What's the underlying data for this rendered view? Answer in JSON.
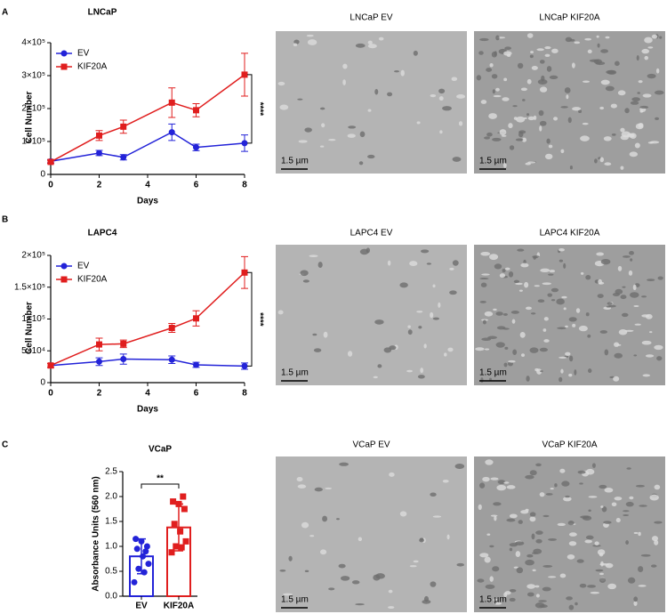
{
  "chart_data": [
    {
      "type": "line",
      "panel": "A",
      "title": "LNCaP",
      "xlabel": "Days",
      "ylabel": "Cell Number",
      "x": [
        0,
        2,
        3,
        5,
        6,
        8
      ],
      "xlim": [
        0,
        8
      ],
      "xticks": [
        0,
        2,
        4,
        6,
        8
      ],
      "ylim": [
        0,
        400000
      ],
      "yticks": [
        0,
        {
          "value": 100000,
          "label": "1×10⁵"
        },
        {
          "value": 200000,
          "label": "2×10⁵"
        },
        {
          "value": 300000,
          "label": "3×10⁵"
        },
        {
          "value": 400000,
          "label": "4×10⁵"
        }
      ],
      "series": [
        {
          "name": "EV",
          "color": "#2323d8",
          "marker": "circle",
          "values": [
            40000,
            65000,
            52000,
            128000,
            82000,
            95000
          ],
          "errors": [
            5000,
            8000,
            8000,
            25000,
            10000,
            25000
          ]
        },
        {
          "name": "KIF20A",
          "color": "#e01e1e",
          "marker": "square",
          "values": [
            38000,
            118000,
            145000,
            218000,
            195000,
            303000
          ],
          "errors": [
            5000,
            15000,
            20000,
            45000,
            20000,
            65000
          ]
        }
      ],
      "annotation": "****"
    },
    {
      "type": "line",
      "panel": "B",
      "title": "LAPC4",
      "xlabel": "Days",
      "ylabel": "Cell Number",
      "x": [
        0,
        2,
        3,
        5,
        6,
        8
      ],
      "xlim": [
        0,
        8
      ],
      "xticks": [
        0,
        2,
        4,
        6,
        8
      ],
      "ylim": [
        0,
        200000
      ],
      "yticks": [
        0,
        {
          "value": 50000,
          "label": "5×10⁴"
        },
        {
          "value": 100000,
          "label": "1×10⁵"
        },
        {
          "value": 150000,
          "label": "1.5×10⁵"
        },
        {
          "value": 200000,
          "label": "2×10⁵"
        }
      ],
      "series": [
        {
          "name": "EV",
          "color": "#2323d8",
          "marker": "circle",
          "values": [
            27000,
            33000,
            37000,
            36000,
            28000,
            26000
          ],
          "errors": [
            3000,
            6000,
            8000,
            6000,
            4000,
            5000
          ]
        },
        {
          "name": "KIF20A",
          "color": "#e01e1e",
          "marker": "square",
          "values": [
            27000,
            60000,
            61000,
            86000,
            101000,
            173000
          ],
          "errors": [
            3000,
            10000,
            6000,
            7000,
            12000,
            25000
          ]
        }
      ],
      "annotation": "****"
    },
    {
      "type": "bar",
      "panel": "C",
      "title": "VCaP",
      "ylabel": "Absorbance Units (560 nm)",
      "categories": [
        "EV",
        "KIF20A"
      ],
      "colors": [
        "#2323d8",
        "#e01e1e"
      ],
      "markers": [
        "circle",
        "square"
      ],
      "values": [
        0.8,
        1.38
      ],
      "errors": [
        0.35,
        0.47
      ],
      "points": [
        [
          0.28,
          0.48,
          0.55,
          0.65,
          0.8,
          0.95,
          1.0,
          1.1,
          1.15,
          0.9
        ],
        [
          0.88,
          0.98,
          1.0,
          1.1,
          1.3,
          1.45,
          1.75,
          1.85,
          1.9,
          2.0
        ]
      ],
      "ylim": [
        0,
        2.5
      ],
      "yticks": [
        {
          "value": 0,
          "label": "0.0"
        },
        0.5,
        {
          "value": 1,
          "label": "1.0"
        },
        1.5,
        {
          "value": 2,
          "label": "2.0"
        },
        2.5
      ],
      "annotation": "**"
    }
  ],
  "images": [
    {
      "title": "LNCaP EV",
      "scale": "1.5 µm"
    },
    {
      "title": "LNCaP KIF20A",
      "scale": "1.5 µm"
    },
    {
      "title": "LAPC4 EV",
      "scale": "1.5 µm"
    },
    {
      "title": "LAPC4 KIF20A",
      "scale": "1.5 µm"
    },
    {
      "title": "VCaP EV",
      "scale": "1.5 µm"
    },
    {
      "title": "VCaP KIF20A",
      "scale": "1.5 µm"
    }
  ]
}
